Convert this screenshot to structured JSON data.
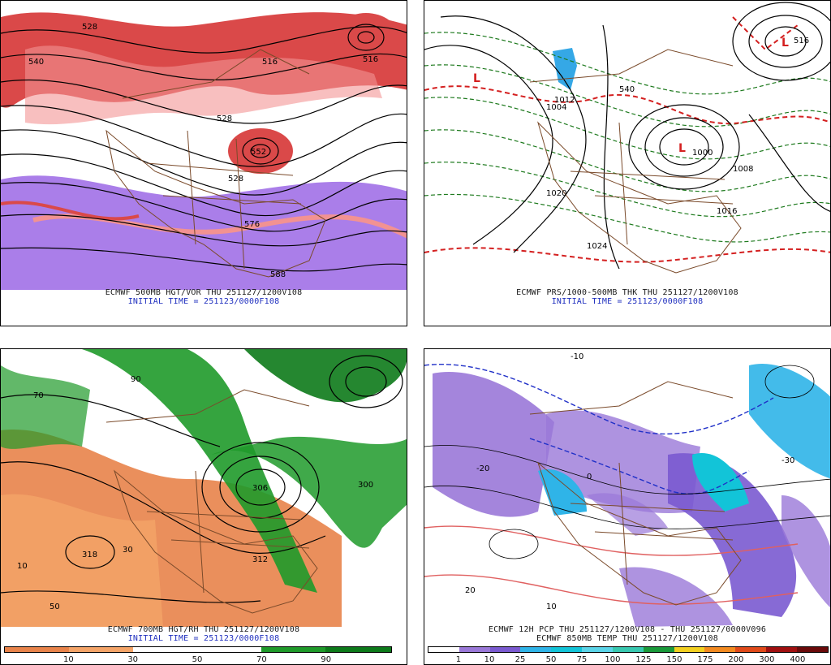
{
  "panels": {
    "top_left": {
      "title": "ECMWF 500MB HGT/VOR THU 251127/1200V108",
      "init": "INITIAL TIME = 251123/0000F108",
      "contour_labels": [
        "528",
        "540",
        "516",
        "516",
        "528",
        "552",
        "528",
        "576",
        "588"
      ],
      "colors": {
        "vort_pos": "#d42a2a",
        "vort_neg": "#8a4de0",
        "height": "#000000",
        "borders": "#7a4a2a"
      }
    },
    "top_right": {
      "title": "ECMWF PRS/1000-500MB THK THU 251127/1200V108",
      "init": "INITIAL TIME = 251123/0000F108",
      "contour_labels": [
        "1000",
        "1004",
        "1008",
        "1012",
        "1016",
        "1020",
        "1024",
        "540",
        "516"
      ],
      "low_marker": "L",
      "colors": {
        "pressure": "#000000",
        "thickness_cold": "#1e7a1e",
        "thickness_warm": "#d42020",
        "low": "#d42020"
      }
    },
    "bottom_left": {
      "title": "ECMWF 700MB HGT/RH THU 251127/1200V108",
      "init": "INITIAL TIME = 251123/0000F108",
      "contour_labels": [
        "10",
        "30",
        "50",
        "70",
        "90",
        "300",
        "306",
        "318",
        "312"
      ],
      "colorbar": {
        "labels": [
          "10",
          "30",
          "50",
          "70",
          "90"
        ],
        "colors": [
          "#e8834a",
          "#f4a468",
          "#ffffff",
          "#ffffff",
          "#1f9a2a",
          "#0d7a1a"
        ]
      }
    },
    "bottom_right": {
      "title": "ECMWF 12H PCP THU 251127/1200V108 - THU 251127/0000V096",
      "subtitle": "ECMWF 850MB TEMP THU 251127/1200V108",
      "contour_labels": [
        "-10",
        "-20",
        "0",
        "10",
        "20",
        "-30"
      ],
      "colorbar": {
        "labels": [
          "1",
          "10",
          "25",
          "50",
          "75",
          "100",
          "125",
          "150",
          "175",
          "200",
          "300",
          "400"
        ],
        "colors": [
          "#ffffff",
          "#9a78d8",
          "#7a5ad0",
          "#2fb4e8",
          "#12c4d8",
          "#5ad4e8",
          "#38c8b0",
          "#1a9a3a",
          "#f2d020",
          "#f28a20",
          "#e04a1a",
          "#a01010",
          "#6a0a0a"
        ]
      }
    }
  }
}
